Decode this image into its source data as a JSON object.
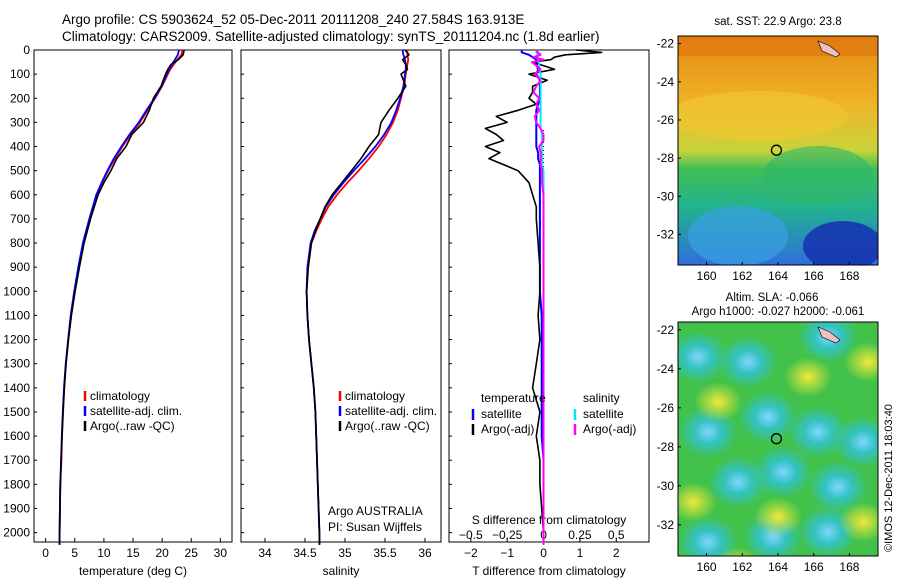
{
  "header": {
    "line1": "Argo profile: CS 5903624_52 05-Dec-2011 20111208_240 27.584S 163.913E",
    "line2": "Climatology: CARS2009. Satellite-adjusted climatology: synTS_20111204.nc (1.8d earlier)"
  },
  "side_credit": "©IMOS 12-Dec-2011 18:03:40",
  "colors": {
    "climatology": "#ff0000",
    "satellite": "#0000ff",
    "argo": "#000000",
    "sal_sat": "#00e5ff",
    "sal_argo": "#ff00ff"
  },
  "chart_data": [
    {
      "type": "line",
      "xlabel": "temperature (deg C)",
      "xlim": [
        -2,
        32
      ],
      "xticks": [
        0,
        5,
        10,
        15,
        20,
        25,
        30
      ],
      "ylim": [
        2050,
        0
      ],
      "yticks": [
        0,
        100,
        200,
        300,
        400,
        500,
        600,
        700,
        800,
        900,
        1000,
        1100,
        1200,
        1300,
        1400,
        1500,
        1600,
        1700,
        1800,
        1900,
        2000
      ],
      "legend": [
        "climatology",
        "satellite-adj. clim.",
        "Argo(..raw -QC)"
      ],
      "depth": [
        0,
        20,
        40,
        60,
        80,
        100,
        150,
        200,
        250,
        300,
        350,
        400,
        450,
        500,
        550,
        600,
        700,
        800,
        900,
        1000,
        1100,
        1200,
        1300,
        1400,
        1500,
        1600,
        1700,
        1800,
        1900,
        2000,
        2050
      ],
      "series": [
        {
          "name": "climatology",
          "values": [
            23.5,
            23.3,
            22.6,
            22.0,
            21.4,
            21.0,
            20.0,
            18.8,
            17.5,
            16.2,
            14.6,
            13.2,
            11.9,
            10.7,
            9.7,
            8.8,
            7.6,
            6.5,
            5.7,
            5.0,
            4.4,
            3.9,
            3.5,
            3.2,
            3.0,
            2.8,
            2.7,
            2.5,
            2.45,
            2.4,
            2.4
          ]
        },
        {
          "name": "satellite-adj. clim.",
          "values": [
            22.9,
            22.7,
            22.2,
            21.7,
            21.2,
            20.8,
            19.9,
            18.7,
            17.3,
            16.0,
            14.4,
            13.0,
            11.7,
            10.6,
            9.6,
            8.7,
            7.5,
            6.4,
            5.6,
            4.9,
            4.3,
            3.85,
            3.45,
            3.15,
            2.95,
            2.78,
            2.65,
            2.52,
            2.45,
            2.4,
            2.4
          ]
        },
        {
          "name": "Argo(..raw -QC)",
          "values": [
            23.8,
            23.6,
            22.8,
            21.5,
            21.0,
            20.6,
            19.8,
            18.5,
            17.8,
            16.8,
            14.8,
            13.8,
            12.2,
            11.2,
            10.0,
            9.0,
            7.7,
            6.6,
            5.8,
            5.05,
            4.4,
            3.9,
            3.5,
            3.2,
            2.98,
            2.8,
            2.66,
            2.53,
            2.46,
            2.41,
            2.4
          ]
        }
      ]
    },
    {
      "type": "line",
      "xlabel": "salinity",
      "xlim": [
        33.7,
        36.2
      ],
      "xticks": [
        34,
        34.5,
        35,
        35.5,
        36
      ],
      "xticklabels": [
        "34",
        "34.5",
        "35",
        "35.5",
        "36"
      ],
      "ylim": [
        2050,
        0
      ],
      "legend": [
        "climatology",
        "satellite-adj. clim.",
        "Argo(..raw -QC)"
      ],
      "annotation": [
        "Argo AUSTRALIA",
        "PI: Susan Wijffels"
      ],
      "depth": [
        0,
        20,
        40,
        60,
        80,
        100,
        150,
        200,
        250,
        300,
        350,
        400,
        450,
        500,
        550,
        600,
        650,
        700,
        750,
        800,
        900,
        1000,
        1100,
        1200,
        1300,
        1400,
        1500,
        1600,
        1700,
        1800,
        1900,
        2000,
        2050
      ],
      "series": [
        {
          "name": "climatology",
          "values": [
            35.78,
            35.78,
            35.79,
            35.78,
            35.77,
            35.76,
            35.74,
            35.7,
            35.66,
            35.6,
            35.52,
            35.42,
            35.3,
            35.17,
            35.03,
            34.9,
            34.79,
            34.71,
            34.64,
            34.58,
            34.54,
            34.52,
            34.53,
            34.55,
            34.58,
            34.61,
            34.63,
            34.64,
            34.65,
            34.66,
            34.67,
            34.68,
            34.68
          ]
        },
        {
          "name": "satellite-adj. clim.",
          "values": [
            35.72,
            35.73,
            35.75,
            35.76,
            35.76,
            35.75,
            35.73,
            35.69,
            35.64,
            35.58,
            35.49,
            35.38,
            35.25,
            35.11,
            34.98,
            34.86,
            34.76,
            34.69,
            34.62,
            34.57,
            34.53,
            34.52,
            34.53,
            34.55,
            34.58,
            34.61,
            34.63,
            34.64,
            34.65,
            34.66,
            34.67,
            34.68,
            34.68
          ]
        },
        {
          "name": "Argo(..raw -QC)",
          "values": [
            35.75,
            35.8,
            35.72,
            35.76,
            35.78,
            35.7,
            35.76,
            35.66,
            35.55,
            35.45,
            35.42,
            35.3,
            35.2,
            35.08,
            34.96,
            34.84,
            34.75,
            34.69,
            34.63,
            34.58,
            34.54,
            34.52,
            34.53,
            34.55,
            34.58,
            34.61,
            34.63,
            34.64,
            34.65,
            34.66,
            34.67,
            34.68,
            34.68
          ]
        }
      ]
    },
    {
      "type": "line",
      "xlabel": "T difference from climatology",
      "xlim": [
        -2.6,
        2.9
      ],
      "xticks": [
        -2,
        -1,
        0,
        1,
        2
      ],
      "xticklabels": [
        "−2",
        "−1",
        "0",
        "1",
        "2"
      ],
      "top_axis_label": "S difference from climatology",
      "top_ticklabels": [
        "−0.5",
        "−0.25",
        "0",
        "0.25",
        "0.5"
      ],
      "ylim": [
        2050,
        0
      ],
      "legend_temperature": {
        "title": "temperature",
        "items": [
          "satellite",
          "Argo(-adj)"
        ]
      },
      "legend_salinity": {
        "title": "salinity",
        "items": [
          "satellite",
          "Argo(-adj)"
        ]
      },
      "depth": [
        0,
        10,
        20,
        30,
        40,
        50,
        60,
        80,
        100,
        125,
        150,
        175,
        200,
        225,
        250,
        275,
        300,
        325,
        350,
        375,
        400,
        425,
        450,
        475,
        500,
        550,
        600,
        650,
        700,
        800,
        900,
        1000,
        1100,
        1200,
        1300,
        1400,
        1500,
        1600,
        1700,
        1800,
        1900,
        2000,
        2050
      ],
      "series": [
        {
          "name": "temperature satellite",
          "values": [
            -0.6,
            -0.6,
            -0.4,
            -0.3,
            -0.2,
            -0.2,
            -0.2,
            -0.15,
            -0.2,
            -0.1,
            -0.1,
            -0.1,
            -0.1,
            -0.15,
            -0.2,
            -0.2,
            -0.2,
            -0.2,
            -0.2,
            -0.2,
            -0.2,
            -0.15,
            -0.15,
            -0.1,
            -0.1,
            -0.1,
            -0.1,
            -0.1,
            -0.1,
            -0.1,
            -0.1,
            -0.1,
            -0.05,
            -0.05,
            -0.05,
            -0.05,
            -0.05,
            -0.05,
            0.0,
            0.0,
            0.0,
            0.0,
            0.0
          ]
        },
        {
          "name": "temperature Argo(-adj)",
          "values": [
            0.9,
            1.6,
            0.6,
            0.3,
            0.2,
            -0.3,
            -0.1,
            0.3,
            -0.4,
            0.1,
            -0.3,
            -0.3,
            -0.4,
            -0.2,
            -0.7,
            -1.3,
            -1.0,
            -1.6,
            -1.3,
            -1.1,
            -1.6,
            -1.2,
            -1.5,
            -1.1,
            -0.7,
            -0.4,
            -0.3,
            -0.2,
            -0.2,
            -0.15,
            -0.1,
            -0.1,
            -0.15,
            -0.1,
            -0.2,
            -0.3,
            -0.1,
            -0.2,
            -0.1,
            -0.1,
            -0.05,
            0.0,
            0.0
          ]
        },
        {
          "name": "salinity satellite",
          "values": [
            -0.05,
            -0.05,
            -0.04,
            -0.04,
            -0.03,
            -0.03,
            -0.03,
            -0.03,
            -0.02,
            -0.02,
            -0.02,
            -0.02,
            -0.02,
            -0.02,
            -0.02,
            -0.02,
            -0.02,
            -0.02,
            -0.01,
            -0.01,
            -0.01,
            -0.01,
            -0.01,
            -0.01,
            0.0,
            0.0,
            0.0,
            0.0,
            0.0,
            0.0,
            0.0,
            0.0,
            0.0,
            0.0,
            0.0,
            0.0,
            0.0,
            0.0,
            0.0,
            0.0,
            0.0,
            0.0,
            0.0
          ]
        },
        {
          "name": "salinity Argo(-adj)",
          "values": [
            -0.05,
            -0.04,
            -0.02,
            -0.07,
            0.0,
            -0.08,
            -0.06,
            -0.02,
            -0.06,
            -0.02,
            -0.05,
            -0.07,
            -0.03,
            -0.05,
            -0.03,
            -0.06,
            -0.05,
            -0.02,
            0.0,
            0.0,
            -0.03,
            -0.02,
            -0.02,
            -0.02,
            -0.01,
            -0.01,
            0.0,
            0.0,
            0.0,
            0.0,
            0.0,
            0.0,
            0.0,
            0.0,
            0.0,
            0.0,
            0.0,
            0.0,
            0.0,
            0.0,
            0.0,
            0.0,
            0.0
          ]
        }
      ]
    },
    {
      "type": "heatmap",
      "title": "sat. SST: 22.9 Argo: 23.8",
      "xticks": [
        160,
        162,
        164,
        166,
        168
      ],
      "yticks": [
        -22,
        -24,
        -26,
        -28,
        -30,
        -32
      ],
      "xlim": [
        158.4,
        169.6
      ],
      "ylim": [
        -33.6,
        -21.6
      ],
      "marker": {
        "lon": 163.913,
        "lat": -27.584
      }
    },
    {
      "type": "heatmap",
      "title_lines": [
        "Altim. SLA: -0.066",
        "Argo h1000: -0.027 h2000: -0.061"
      ],
      "xticks": [
        160,
        162,
        164,
        166,
        168
      ],
      "yticks": [
        -22,
        -24,
        -26,
        -28,
        -30,
        -32
      ],
      "xlim": [
        158.4,
        169.6
      ],
      "ylim": [
        -33.6,
        -21.6
      ],
      "marker": {
        "lon": 163.913,
        "lat": -27.584
      }
    }
  ]
}
